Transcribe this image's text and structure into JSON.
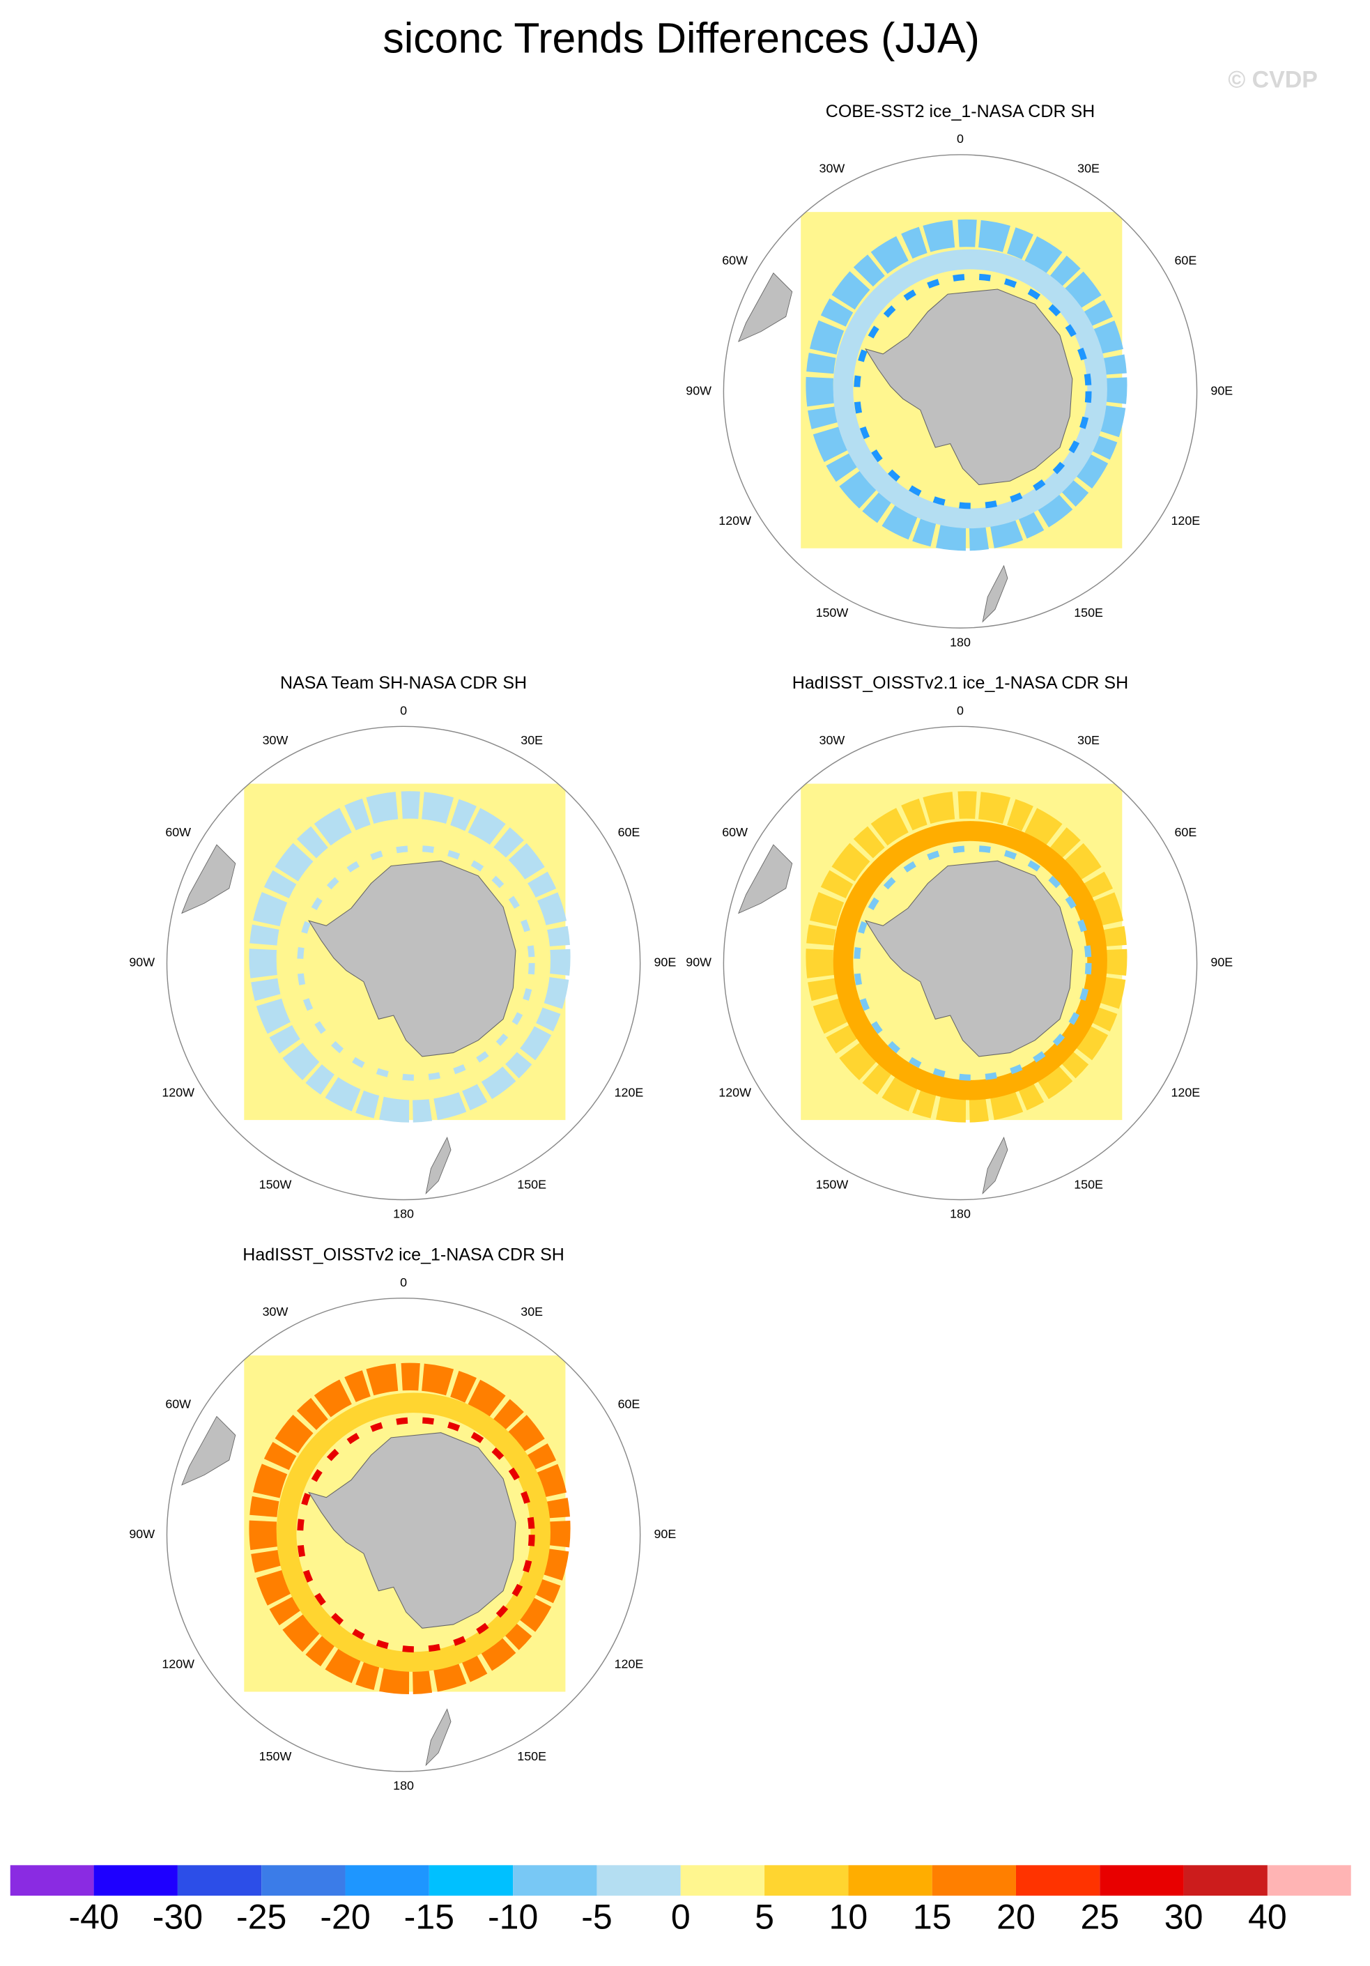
{
  "title": "siconc Trends Differences (JJA)",
  "watermark": "© CVDP",
  "lon_labels": [
    "0",
    "30E",
    "60E",
    "90E",
    "120E",
    "150E",
    "180",
    "150W",
    "120W",
    "90W",
    "60W",
    "30W"
  ],
  "panels": [
    {
      "title": "COBE-SST2 ice_1-NASA CDR SH"
    },
    {
      "title": "NASA Team SH-NASA CDR SH"
    },
    {
      "title": "HadISST_OISSTv2.1 ice_1-NASA CDR SH"
    },
    {
      "title": "HadISST_OISSTv2 ice_1-NASA CDR SH"
    }
  ],
  "colorbar": {
    "colors": [
      "#8a2be2",
      "#1e00ff",
      "#2c4ee8",
      "#3b7ce8",
      "#1e96ff",
      "#00c0ff",
      "#78c8f5",
      "#b4def2",
      "#fff68f",
      "#ffd530",
      "#ffad00",
      "#ff7f00",
      "#ff3300",
      "#e80000",
      "#cc1c1c",
      "#ffb4b4"
    ],
    "labels": [
      -40,
      -30,
      -25,
      -20,
      -15,
      -10,
      -5,
      0,
      5,
      10,
      15,
      20,
      25,
      30,
      40
    ]
  }
}
